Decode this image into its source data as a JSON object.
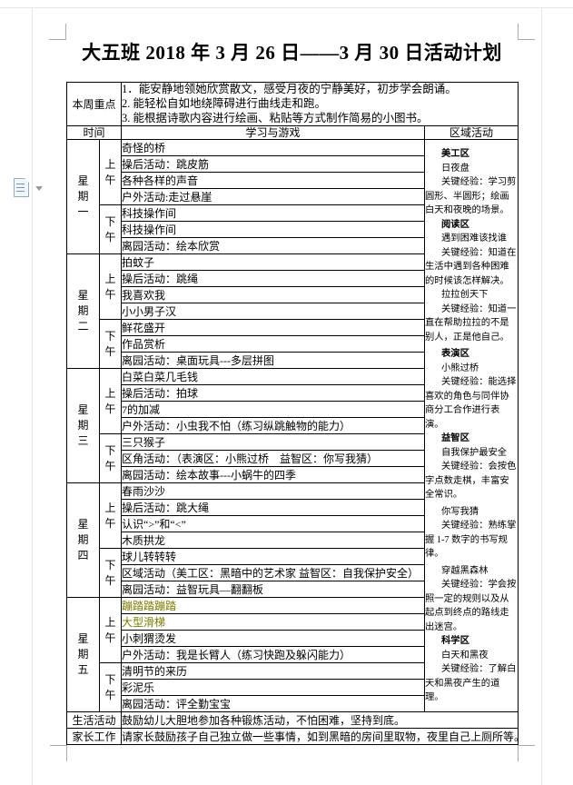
{
  "page": {
    "title": "大五班 2018 年 3 月 26 日——3 月 30 日活动计划"
  },
  "focus": {
    "label": "本周重点",
    "items": [
      "1．能安静地领她欣赏散文，感受月夜的宁静美好，初步学会朗诵。",
      "2. 能轻松自如地绕障碍进行曲线走和跑。",
      "3. 能根据诗歌内容进行绘画、粘贴等方式制作简易的小图书。"
    ]
  },
  "table_headers": {
    "time": "时间",
    "learning": "学习与游戏",
    "region": "区域活动"
  },
  "period_labels": {
    "am": "上午",
    "pm": "下午"
  },
  "highlight_color": "#7a7a00",
  "days": [
    {
      "name": "星期一",
      "am": [
        "奇怪的桥",
        "操后活动：跳皮筋",
        "各种各样的声音",
        "户外活动:走过悬崖"
      ],
      "pm": [
        "科技操作间",
        "科技操作间",
        "离园活动：绘本欣赏"
      ]
    },
    {
      "name": "星期二",
      "am": [
        "拍蚊子",
        "操后活动：跳绳",
        "我喜欢我",
        "小小男子汉"
      ],
      "pm": [
        "鲜花盛开",
        "作品赏析",
        "离园活动：桌面玩具---多层拼图"
      ]
    },
    {
      "name": "星期三",
      "am": [
        "白菜白菜几毛钱",
        "操后活动：拍球",
        "7的加减",
        "户外活动：小虫我不怕（练习纵跳触物的能力）"
      ],
      "pm": [
        "三只猴子",
        "区角活动：（表演区：小熊过桥　益智区：你写我猜）",
        "离园活动：绘本故事---小蜗牛的四季"
      ]
    },
    {
      "name": "星期四",
      "am": [
        "春雨沙沙",
        "操后活动：跳大绳",
        "认识“>”和“<”",
        "木质拱龙"
      ],
      "pm": [
        "球儿转转转",
        "区域活动（美工区：黑暗中的艺术家 益智区：自我保护安全）",
        "离园活动：益智玩具—翻翻板"
      ]
    },
    {
      "name": "星期五",
      "am": [
        {
          "text": "蹦踏踏蹦踏",
          "color": "#7a7a00"
        },
        {
          "text": "大型滑梯",
          "color": "#7a7a00"
        },
        "小刺猬烫发",
        "户外活动：我是长臂人（练习快跑及躲闪能力）"
      ],
      "pm": [
        "清明节的来历",
        "彩泥乐",
        "离园活动：评全勤宝宝"
      ]
    }
  ],
  "region_column": [
    {
      "style": "header",
      "text": "美工区"
    },
    {
      "style": "p",
      "text": "日夜盘"
    },
    {
      "style": "p",
      "text": "关键经验：学习剪圆形、半圆形；绘画白天和夜晚的场景。"
    },
    {
      "style": "header",
      "text": "阅读区"
    },
    {
      "style": "p",
      "text": "遇到困难该找谁"
    },
    {
      "style": "p",
      "text": "关键经验：知道在生活中遇到各种困难的时候该怎样解决。"
    },
    {
      "style": "p",
      "text": "拉拉创天下"
    },
    {
      "style": "p",
      "text": "关键经验：知道一直在帮助拉拉的不是别人，正是他自己。"
    },
    {
      "style": "header",
      "text": "表演区",
      "gap": true
    },
    {
      "style": "p",
      "text": "小熊过桥"
    },
    {
      "style": "p",
      "text": "关键经验：能选择喜欢的角色与同伴协商分工合作进行表演。"
    },
    {
      "style": "header",
      "text": "益智区"
    },
    {
      "style": "p",
      "text": "自我保护最安全"
    },
    {
      "style": "p",
      "text": "关键经验：会按色字点数走棋，丰富安全常识。"
    },
    {
      "style": "p",
      "text": "你写我猜",
      "gap": true
    },
    {
      "style": "p",
      "text": "关键经验：熟练掌握 1-7 数字的书写规律。"
    },
    {
      "style": "p",
      "text": "穿越黑森林",
      "gap": true
    },
    {
      "style": "p",
      "text": "关键经验：学会按照一定的规则以及从起点到终点的路线走出迷宫。"
    },
    {
      "style": "header",
      "text": "科学区"
    },
    {
      "style": "p",
      "text": "白天和黑夜"
    },
    {
      "style": "p",
      "text": "关键经验：了解白天和黑夜产生的道理。"
    }
  ],
  "bottom_rows": [
    {
      "label": "生活活动",
      "text": "鼓励幼儿大胆地参加各种锻炼活动，不怕困难，坚持到底。"
    },
    {
      "label": "家长工作",
      "text": "请家长鼓励孩子自己独立做一些事情，如到黑暗的房间里取物，夜里自己上厕所等。"
    }
  ],
  "icons": {
    "margin": "document-icon",
    "caret": "caret-down-icon"
  }
}
